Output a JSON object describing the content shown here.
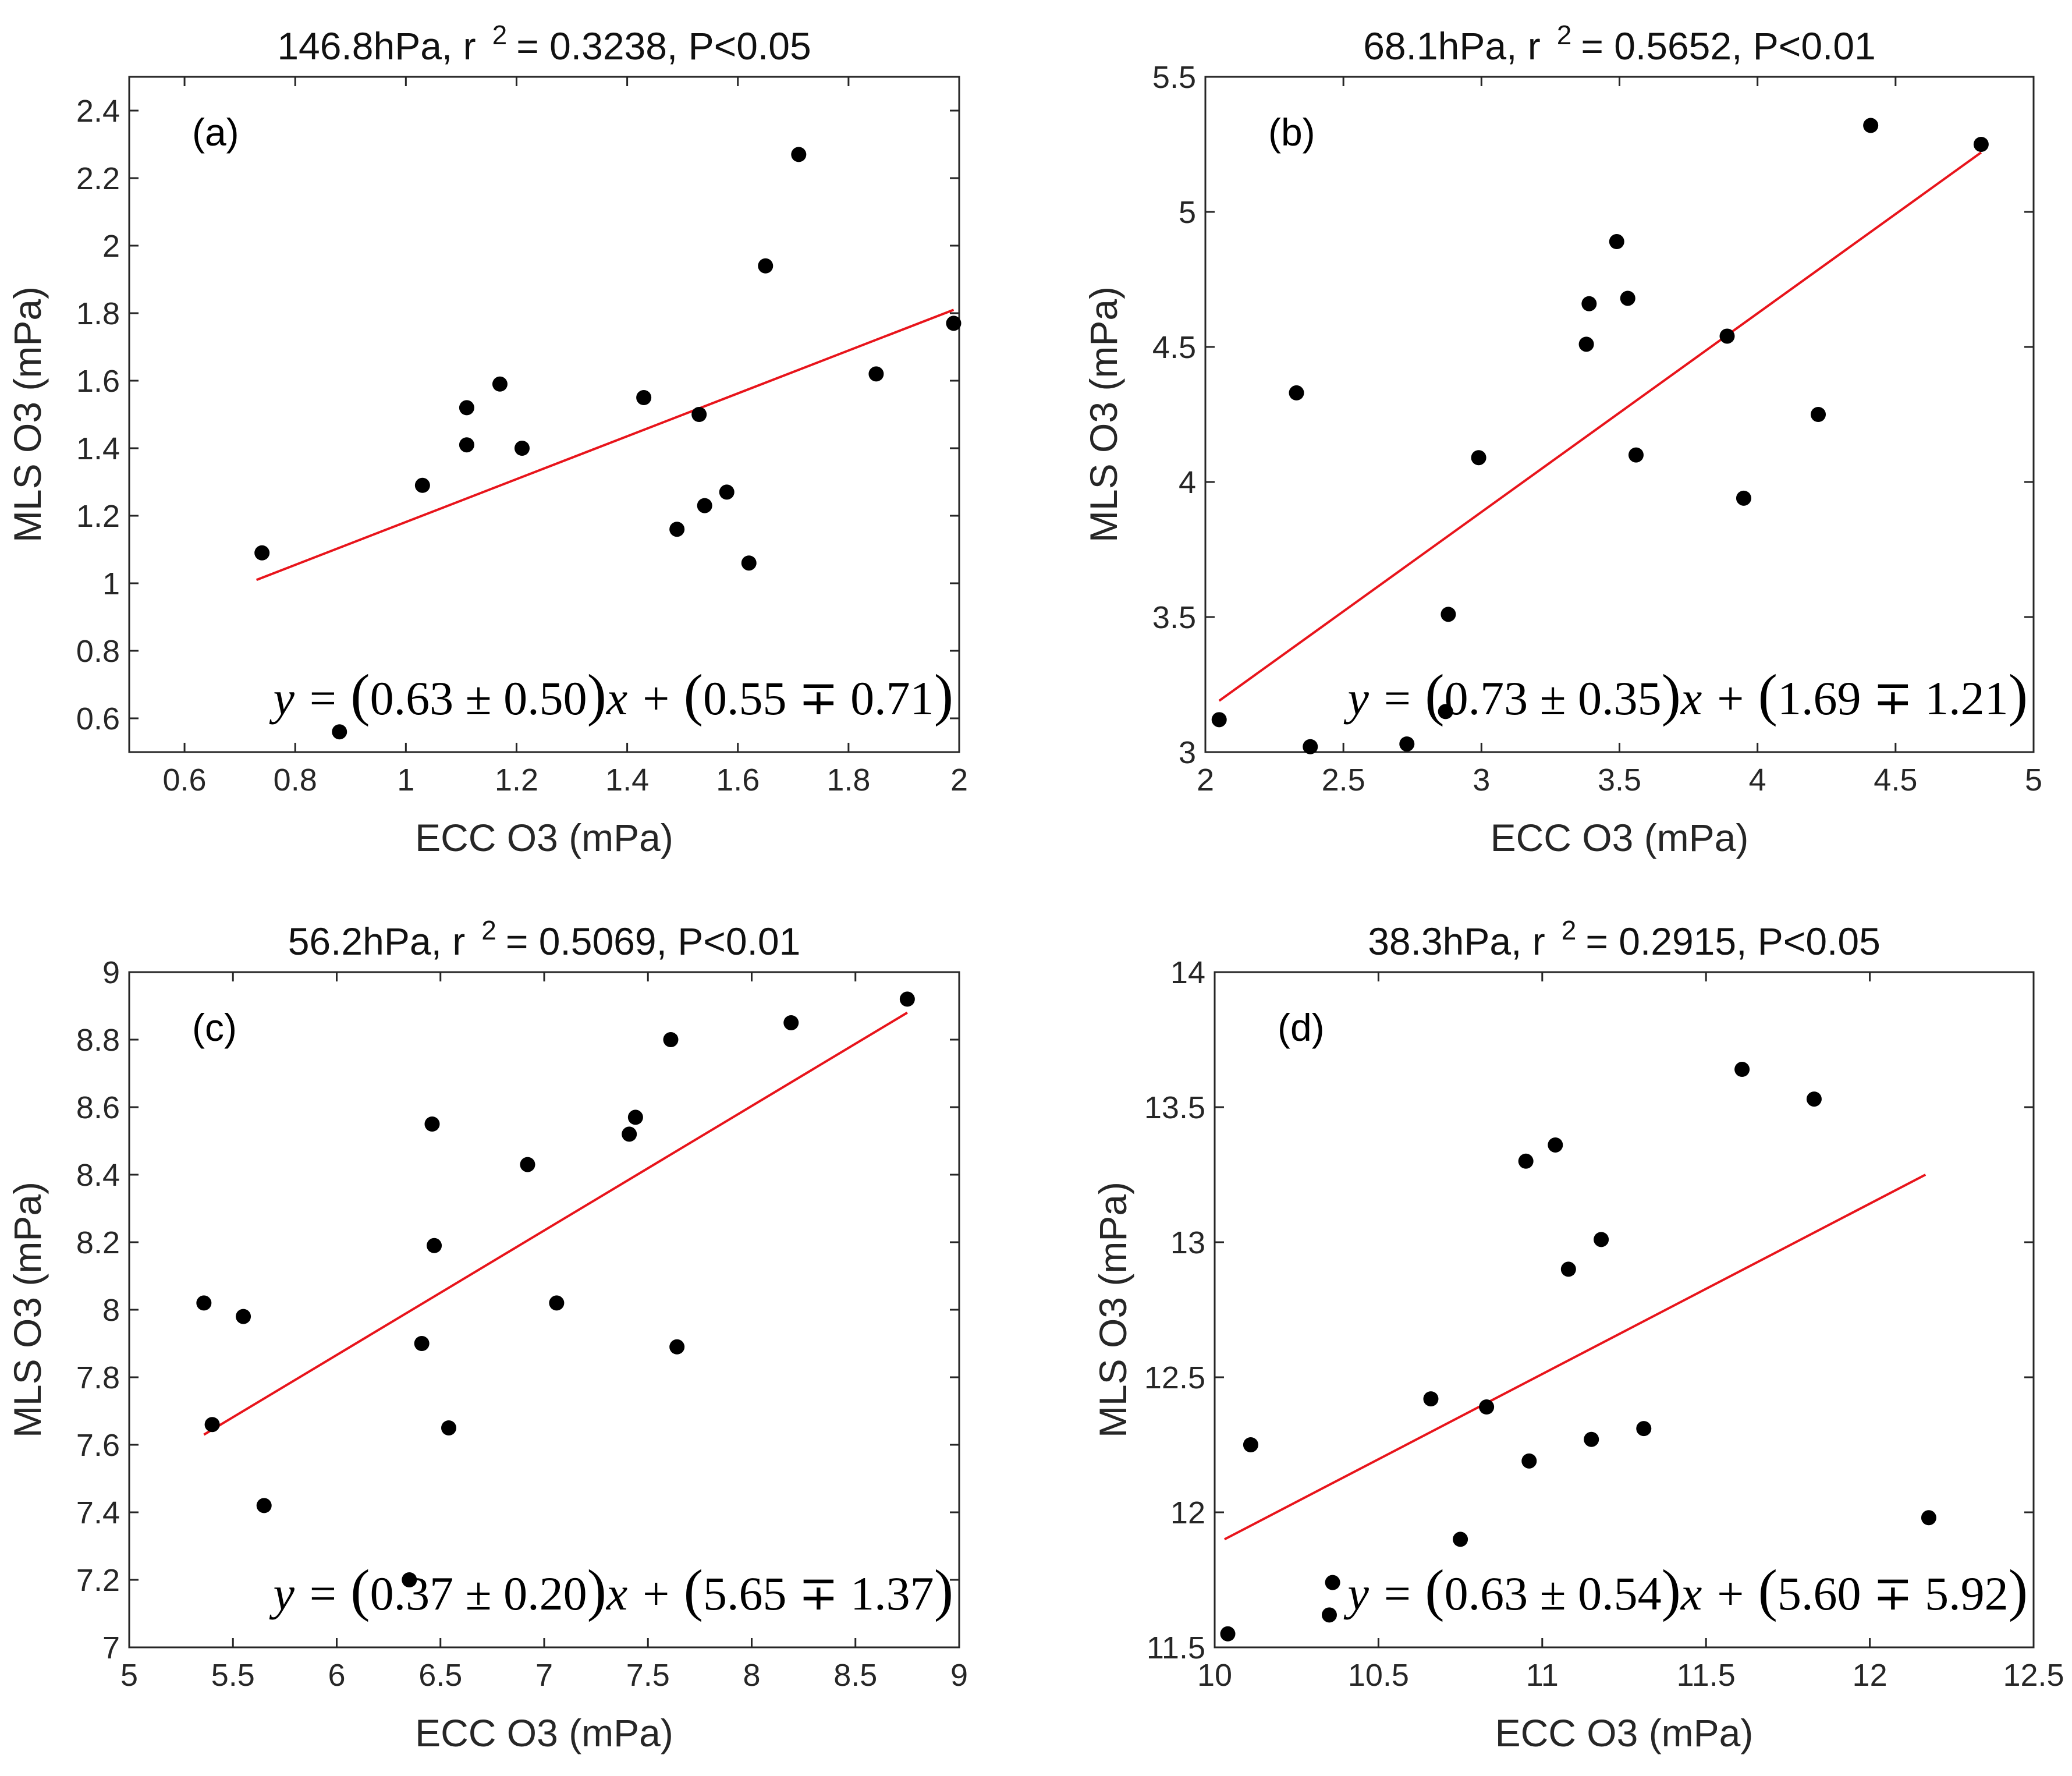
{
  "chart_data": [
    {
      "id": "a",
      "type": "scatter",
      "panel_label": "(a)",
      "title": "146.8hPa,  r  ² = 0.3238,  P<0.05",
      "title_parts": {
        "pressure": "146.8hPa,",
        "r": "r",
        "sup": "2",
        "r2": "= 0.3238,",
        "p": "P<0.05"
      },
      "xlabel": "ECC O3 (mPa)",
      "ylabel": "MLS O3 (mPa)",
      "xlim": [
        0.5,
        2.0
      ],
      "ylim": [
        0.5,
        2.5
      ],
      "xticks": [
        0.6,
        0.8,
        1.0,
        1.2,
        1.4,
        1.6,
        1.8,
        2.0
      ],
      "xtick_labels": [
        "0.6",
        "0.8",
        "1",
        "1.2",
        "1.4",
        "1.6",
        "1.8",
        "2"
      ],
      "yticks": [
        0.6,
        0.8,
        1.0,
        1.2,
        1.4,
        1.6,
        1.8,
        2.0,
        2.2,
        2.4
      ],
      "ytick_labels": [
        "0.6",
        "0.8",
        "1",
        "1.2",
        "1.4",
        "1.6",
        "1.8",
        "2",
        "2.2",
        "2.4"
      ],
      "x": [
        0.74,
        0.88,
        1.03,
        1.11,
        1.11,
        1.17,
        1.21,
        1.43,
        1.49,
        1.53,
        1.54,
        1.58,
        1.62,
        1.65,
        1.71,
        1.85,
        1.99
      ],
      "y": [
        1.09,
        0.56,
        1.29,
        1.41,
        1.52,
        1.59,
        1.4,
        1.55,
        1.16,
        1.5,
        1.23,
        1.27,
        1.06,
        1.94,
        2.27,
        1.62,
        1.77
      ],
      "fit_line": {
        "x": [
          0.73,
          1.99
        ],
        "y": [
          1.01,
          1.81
        ]
      },
      "equation": {
        "prefix": "y = ",
        "slope": "0.63 ± 0.50",
        "mid": "x + ",
        "intercept": "0.55 ∓ 0.71"
      },
      "r_squared": 0.3238,
      "p_value": "P<0.05"
    },
    {
      "id": "b",
      "type": "scatter",
      "panel_label": "(b)",
      "title_parts": {
        "pressure": "68.1hPa,",
        "r": "r",
        "sup": "2",
        "r2": "= 0.5652,",
        "p": "P<0.01"
      },
      "xlabel": "ECC O3 (mPa)",
      "ylabel": "MLS O3 (mPa)",
      "xlim": [
        2.0,
        5.0
      ],
      "ylim": [
        3.0,
        5.5
      ],
      "xticks": [
        2.0,
        2.5,
        3.0,
        3.5,
        4.0,
        4.5,
        5.0
      ],
      "xtick_labels": [
        "2",
        "2.5",
        "3",
        "3.5",
        "4",
        "4.5",
        "5"
      ],
      "yticks": [
        3.0,
        3.5,
        4.0,
        4.5,
        5.0,
        5.5
      ],
      "ytick_labels": [
        "3",
        "3.5",
        "4",
        "4.5",
        "5",
        "5.5"
      ],
      "x": [
        2.05,
        2.33,
        2.38,
        2.73,
        2.87,
        2.88,
        2.99,
        3.38,
        3.39,
        3.49,
        3.53,
        3.56,
        3.89,
        3.95,
        4.22,
        4.41,
        4.81
      ],
      "y": [
        3.12,
        4.33,
        3.02,
        3.03,
        3.15,
        3.51,
        4.09,
        4.51,
        4.66,
        4.89,
        4.68,
        4.1,
        4.54,
        3.94,
        4.25,
        5.32,
        5.25
      ],
      "fit_line": {
        "x": [
          2.05,
          4.81
        ],
        "y": [
          3.19,
          5.22
        ]
      },
      "equation": {
        "prefix": "y = ",
        "slope": "0.73 ± 0.35",
        "mid": "x + ",
        "intercept": "1.69 ∓ 1.21"
      },
      "r_squared": 0.5652,
      "p_value": "P<0.01"
    },
    {
      "id": "c",
      "type": "scatter",
      "panel_label": "(c)",
      "title_parts": {
        "pressure": "56.2hPa,",
        "r": "r",
        "sup": "2",
        "r2": "= 0.5069,",
        "p": "P<0.01"
      },
      "xlabel": "ECC O3 (mPa)",
      "ylabel": "MLS O3 (mPa)",
      "xlim": [
        5.0,
        9.0
      ],
      "ylim": [
        7.0,
        9.0
      ],
      "xticks": [
        5.0,
        5.5,
        6.0,
        6.5,
        7.0,
        7.5,
        8.0,
        8.5,
        9.0
      ],
      "xtick_labels": [
        "5",
        "5.5",
        "6",
        "6.5",
        "7",
        "7.5",
        "8",
        "8.5",
        "9"
      ],
      "yticks": [
        7.0,
        7.2,
        7.4,
        7.6,
        7.8,
        8.0,
        8.2,
        8.4,
        8.6,
        8.8,
        9.0
      ],
      "ytick_labels": [
        "7",
        "7.2",
        "7.4",
        "7.6",
        "7.8",
        "8",
        "8.2",
        "8.4",
        "8.6",
        "8.8",
        "9"
      ],
      "x": [
        5.36,
        5.4,
        5.55,
        5.65,
        6.35,
        6.41,
        6.46,
        6.47,
        6.54,
        6.92,
        7.06,
        7.41,
        7.44,
        7.61,
        7.64,
        8.19,
        8.75
      ],
      "y": [
        8.02,
        7.66,
        7.98,
        7.42,
        7.2,
        7.9,
        8.55,
        8.19,
        7.65,
        8.43,
        8.02,
        8.52,
        8.57,
        8.8,
        7.89,
        8.85,
        8.92
      ],
      "fit_line": {
        "x": [
          5.36,
          8.75
        ],
        "y": [
          7.63,
          8.88
        ]
      },
      "equation": {
        "prefix": "y = ",
        "slope": "0.37 ± 0.20",
        "mid": "x + ",
        "intercept": "5.65 ∓ 1.37"
      },
      "r_squared": 0.5069,
      "p_value": "P<0.01"
    },
    {
      "id": "d",
      "type": "scatter",
      "panel_label": "(d)",
      "title_parts": {
        "pressure": "38.3hPa,",
        "r": "r",
        "sup": "2",
        "r2": "= 0.2915,",
        "p": "P<0.05"
      },
      "xlabel": "ECC O3 (mPa)",
      "ylabel": "MLS O3 (mPa)",
      "xlim": [
        10.0,
        12.5
      ],
      "ylim": [
        11.5,
        14.0
      ],
      "xticks": [
        10.0,
        10.5,
        11.0,
        11.5,
        12.0,
        12.5
      ],
      "xtick_labels": [
        "10",
        "10.5",
        "11",
        "11.5",
        "12",
        "12.5"
      ],
      "yticks": [
        11.5,
        12.0,
        12.5,
        13.0,
        13.5,
        14.0
      ],
      "ytick_labels": [
        "11.5",
        "12",
        "12.5",
        "13",
        "13.5",
        "14"
      ],
      "x": [
        10.04,
        10.11,
        10.35,
        10.36,
        10.66,
        10.75,
        10.83,
        10.95,
        10.96,
        11.04,
        11.08,
        11.15,
        11.18,
        11.31,
        11.61,
        11.83,
        12.18
      ],
      "y": [
        11.55,
        12.25,
        11.62,
        11.74,
        12.42,
        11.9,
        12.39,
        13.3,
        12.19,
        13.36,
        12.9,
        12.27,
        13.01,
        12.31,
        13.64,
        13.53,
        11.98
      ],
      "fit_line": {
        "x": [
          10.03,
          12.17
        ],
        "y": [
          11.9,
          13.25
        ]
      },
      "equation": {
        "prefix": "y = ",
        "slope": "0.63 ± 0.54",
        "mid": "x + ",
        "intercept": "5.60 ∓ 5.92"
      },
      "r_squared": 0.2915,
      "p_value": "P<0.05"
    }
  ]
}
